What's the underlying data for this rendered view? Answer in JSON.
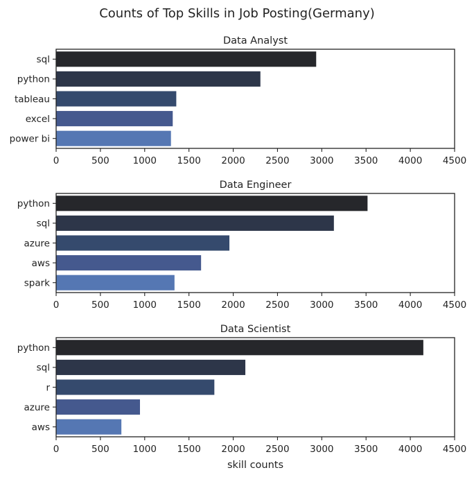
{
  "chart_data": {
    "title": "Counts of Top Skills in Job Posting(Germany)",
    "xlabel": "skill counts",
    "type": "bar",
    "orientation": "horizontal",
    "xlim": [
      0,
      4500
    ],
    "xticks": [
      0,
      500,
      1000,
      1500,
      2000,
      2500,
      3000,
      3500,
      4000,
      4500
    ],
    "grid": false,
    "palette": [
      "#26272b",
      "#2d3649",
      "#354a6d",
      "#45598e",
      "#5577b3"
    ],
    "panels": [
      {
        "title": "Data Analyst",
        "categories": [
          "sql",
          "python",
          "tableau",
          "excel",
          "power bi"
        ],
        "values": [
          2940,
          2310,
          1360,
          1320,
          1300
        ]
      },
      {
        "title": "Data Engineer",
        "categories": [
          "python",
          "sql",
          "azure",
          "aws",
          "spark"
        ],
        "values": [
          3520,
          3140,
          1960,
          1640,
          1340
        ]
      },
      {
        "title": "Data Scientist",
        "categories": [
          "python",
          "sql",
          "r",
          "azure",
          "aws"
        ],
        "values": [
          4150,
          2140,
          1790,
          950,
          740
        ]
      }
    ]
  }
}
